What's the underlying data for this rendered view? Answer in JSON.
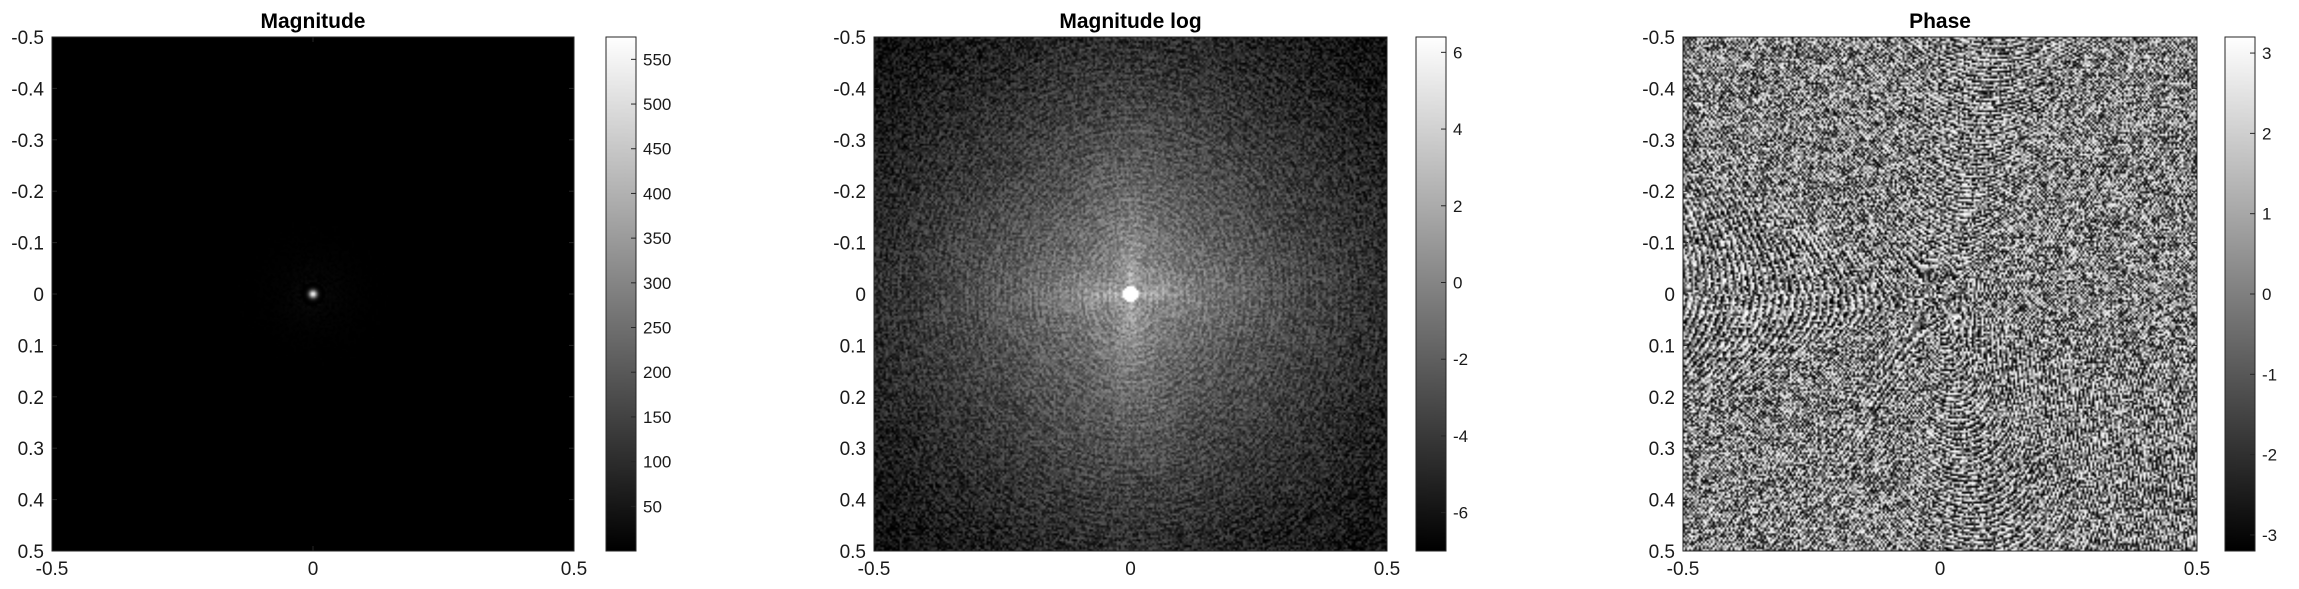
{
  "chart_data": [
    {
      "type": "heatmap",
      "title": "Magnitude",
      "image": "magnitude",
      "x_ticks": [
        "-0.5",
        "0",
        "0.5"
      ],
      "x_tick_values": [
        -0.5,
        0,
        0.5
      ],
      "y_ticks": [
        "-0.5",
        "-0.4",
        "-0.3",
        "-0.2",
        "-0.1",
        "0",
        "0.1",
        "0.2",
        "0.3",
        "0.4",
        "0.5"
      ],
      "y_tick_values": [
        -0.5,
        -0.4,
        -0.3,
        -0.2,
        -0.1,
        0,
        0.1,
        0.2,
        0.3,
        0.4,
        0.5
      ],
      "xlim": [
        -0.5,
        0.5
      ],
      "ylim": [
        -0.5,
        0.5
      ],
      "y_reversed": true,
      "colormap": "gray",
      "colorbar": {
        "range": [
          0,
          575
        ],
        "ticks": [
          "50",
          "100",
          "150",
          "200",
          "250",
          "300",
          "350",
          "400",
          "450",
          "500",
          "550"
        ],
        "tick_values": [
          50,
          100,
          150,
          200,
          250,
          300,
          350,
          400,
          450,
          500,
          550
        ]
      }
    },
    {
      "type": "heatmap",
      "title": "Magnitude log",
      "image": "log-magnitude",
      "x_ticks": [
        "-0.5",
        "0",
        "0.5"
      ],
      "x_tick_values": [
        -0.5,
        0,
        0.5
      ],
      "y_ticks": [
        "-0.5",
        "-0.4",
        "-0.3",
        "-0.2",
        "-0.1",
        "0",
        "0.1",
        "0.2",
        "0.3",
        "0.4",
        "0.5"
      ],
      "y_tick_values": [
        -0.5,
        -0.4,
        -0.3,
        -0.2,
        -0.1,
        0,
        0.1,
        0.2,
        0.3,
        0.4,
        0.5
      ],
      "xlim": [
        -0.5,
        0.5
      ],
      "ylim": [
        -0.5,
        0.5
      ],
      "y_reversed": true,
      "colormap": "gray",
      "colorbar": {
        "range": [
          -7,
          6.4
        ],
        "ticks": [
          "-6",
          "-4",
          "-2",
          "0",
          "2",
          "4",
          "6"
        ],
        "tick_values": [
          -6,
          -4,
          -2,
          0,
          2,
          4,
          6
        ]
      }
    },
    {
      "type": "heatmap",
      "title": "Phase",
      "image": "phase",
      "x_ticks": [
        "-0.5",
        "0",
        "0.5"
      ],
      "x_tick_values": [
        -0.5,
        0,
        0.5
      ],
      "y_ticks": [
        "-0.5",
        "-0.4",
        "-0.3",
        "-0.2",
        "-0.1",
        "0",
        "0.1",
        "0.2",
        "0.3",
        "0.4",
        "0.5"
      ],
      "y_tick_values": [
        -0.5,
        -0.4,
        -0.3,
        -0.2,
        -0.1,
        0,
        0.1,
        0.2,
        0.3,
        0.4,
        0.5
      ],
      "xlim": [
        -0.5,
        0.5
      ],
      "ylim": [
        -0.5,
        0.5
      ],
      "y_reversed": true,
      "colormap": "gray",
      "colorbar": {
        "range": [
          -3.2,
          3.2
        ],
        "ticks": [
          "-3",
          "-2",
          "-1",
          "0",
          "1",
          "2",
          "3"
        ],
        "tick_values": [
          -3,
          -2,
          -1,
          0,
          1,
          2,
          3
        ]
      }
    }
  ]
}
